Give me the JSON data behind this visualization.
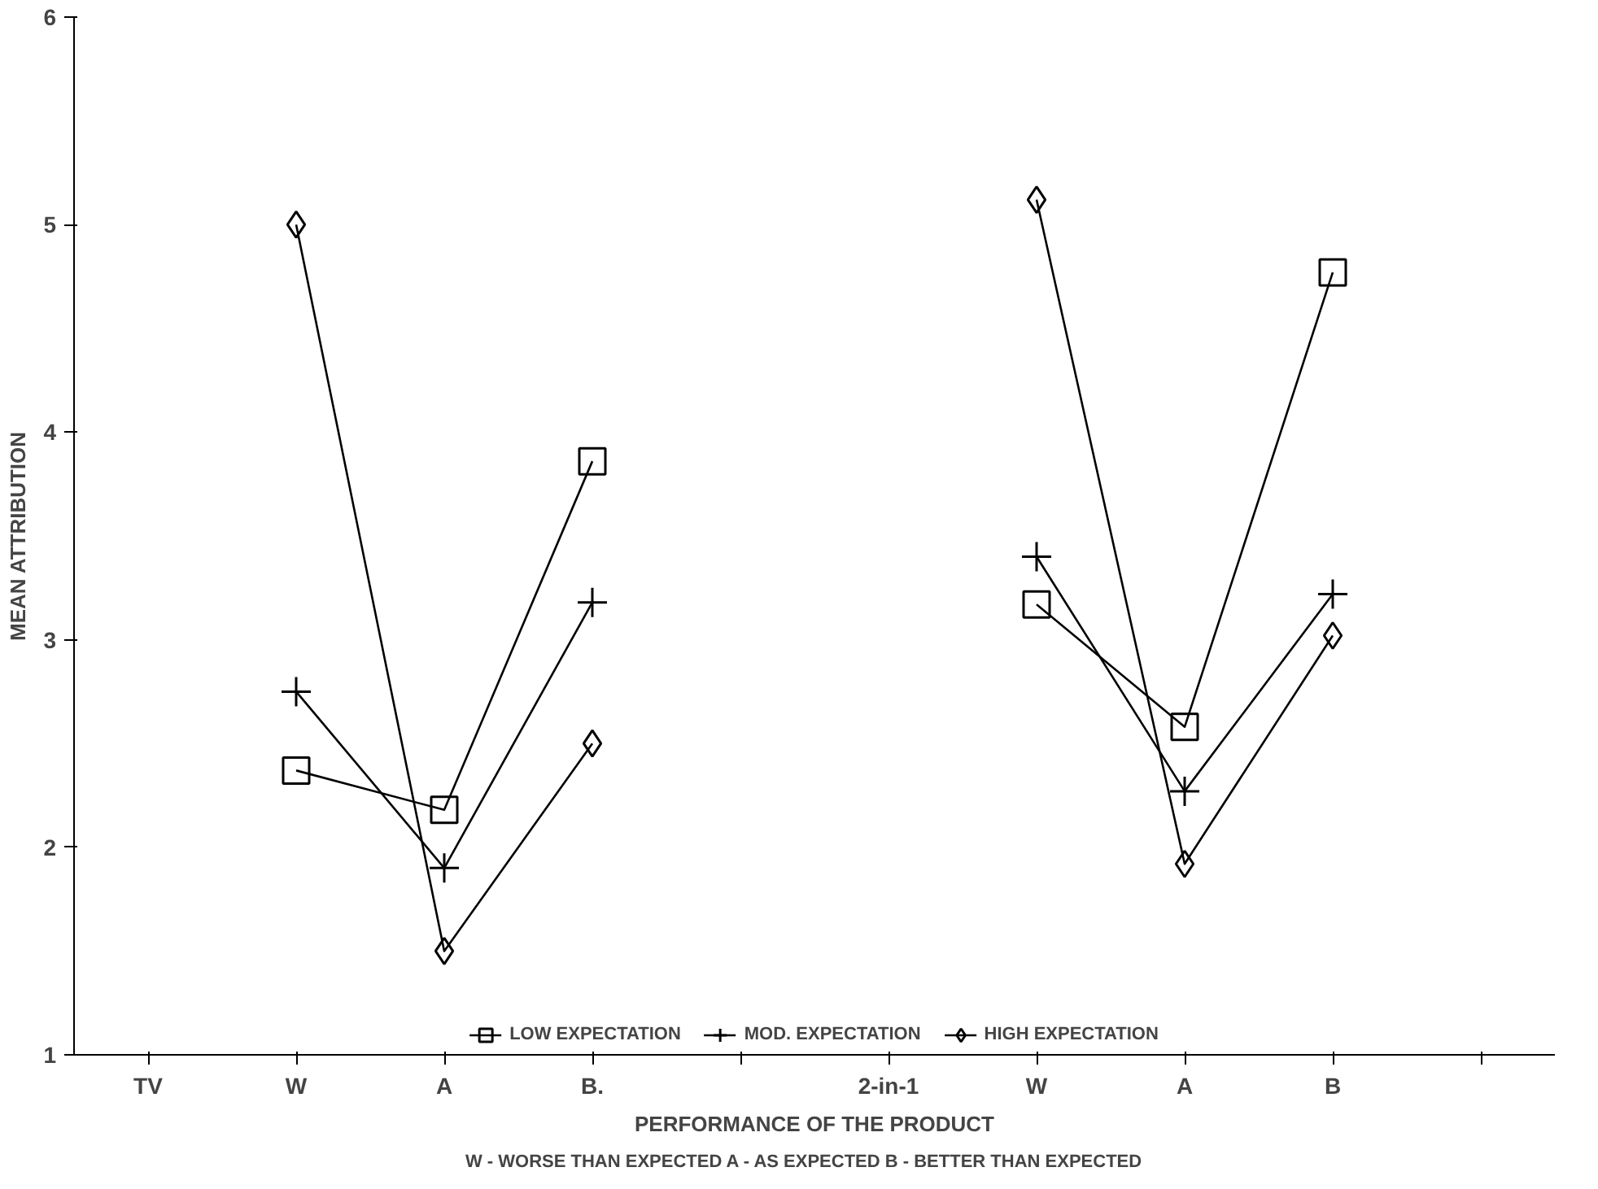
{
  "chart_data": {
    "type": "line",
    "xlabel": "PERFORMANCE OF THE PRODUCT",
    "ylabel": "MEAN ATTRIBUTION",
    "categories": [
      "TV",
      "W",
      "A",
      "B.",
      null,
      "2-in-1",
      "W",
      "A",
      "B",
      null
    ],
    "series": [
      {
        "name": "LOW EXPECTATION",
        "color": "#000000",
        "marker": "square",
        "values": [
          null,
          2.37,
          2.18,
          3.86,
          null,
          null,
          3.17,
          2.58,
          4.77,
          null
        ]
      },
      {
        "name": "MOD. EXPECTATION",
        "color": "#000000",
        "marker": "cross",
        "values": [
          null,
          2.75,
          1.9,
          3.18,
          null,
          null,
          3.4,
          2.27,
          3.22,
          null
        ]
      },
      {
        "name": "HIGH EXPECTATION",
        "color": "#000000",
        "marker": "diamond",
        "values": [
          null,
          5.0,
          1.5,
          2.5,
          null,
          null,
          5.12,
          1.92,
          3.02,
          null
        ]
      }
    ],
    "ylim": [
      1,
      6
    ],
    "yticks": [
      1,
      2,
      3,
      4,
      5,
      6
    ],
    "grid": false,
    "legend": "bottom",
    "annotations": [
      "W - WORSE THAN EXPECTED   A - AS EXPECTED   B - BETTER THAN EXPECTED"
    ]
  }
}
